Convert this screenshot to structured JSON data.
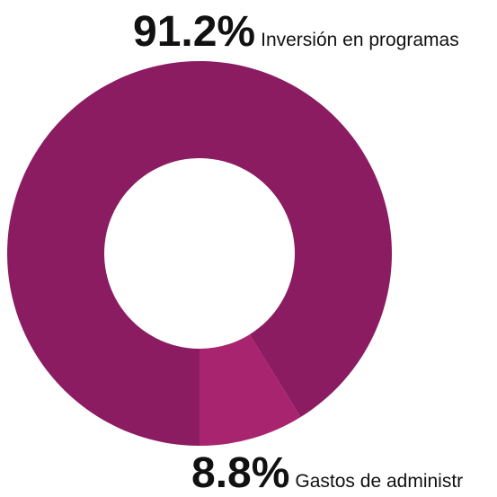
{
  "chart_data": {
    "type": "pie",
    "donut": true,
    "categories": [
      "Inversión en programas",
      "Gastos de administr"
    ],
    "values": [
      91.2,
      8.8
    ],
    "value_labels": [
      "91.2%",
      "8.8%"
    ],
    "colors": [
      "#8b1c62",
      "#a8246f"
    ],
    "title": "",
    "legend": "none"
  }
}
